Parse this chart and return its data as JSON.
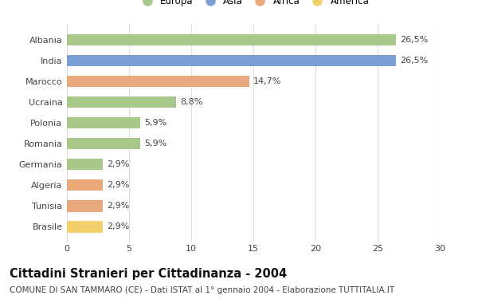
{
  "categories": [
    "Brasile",
    "Tunisia",
    "Algeria",
    "Germania",
    "Romania",
    "Polonia",
    "Ucraina",
    "Marocco",
    "India",
    "Albania"
  ],
  "values": [
    2.9,
    2.9,
    2.9,
    2.9,
    5.9,
    5.9,
    8.8,
    14.7,
    26.5,
    26.5
  ],
  "labels": [
    "2,9%",
    "2,9%",
    "2,9%",
    "2,9%",
    "5,9%",
    "5,9%",
    "8,8%",
    "14,7%",
    "26,5%",
    "26,5%"
  ],
  "colors": [
    "#f2d06b",
    "#e8a87c",
    "#e8a87c",
    "#a8c88a",
    "#a8c88a",
    "#a8c88a",
    "#a8c88a",
    "#e8a87c",
    "#7b9fd4",
    "#a8c88a"
  ],
  "legend": [
    {
      "label": "Europa",
      "color": "#a8c88a"
    },
    {
      "label": "Asia",
      "color": "#7b9fd4"
    },
    {
      "label": "Africa",
      "color": "#e8a87c"
    },
    {
      "label": "America",
      "color": "#f2d06b"
    }
  ],
  "title": "Cittadini Stranieri per Cittadinanza - 2004",
  "subtitle": "COMUNE DI SAN TAMMARO (CE) - Dati ISTAT al 1° gennaio 2004 - Elaborazione TUTTITALIA.IT",
  "xlim": [
    0,
    30
  ],
  "xticks": [
    0,
    5,
    10,
    15,
    20,
    25,
    30
  ],
  "bg_color": "#ffffff",
  "plot_bg_color": "#ffffff",
  "bar_height": 0.55,
  "title_fontsize": 10.5,
  "subtitle_fontsize": 7.5,
  "label_fontsize": 8,
  "tick_fontsize": 8,
  "legend_fontsize": 8.5
}
